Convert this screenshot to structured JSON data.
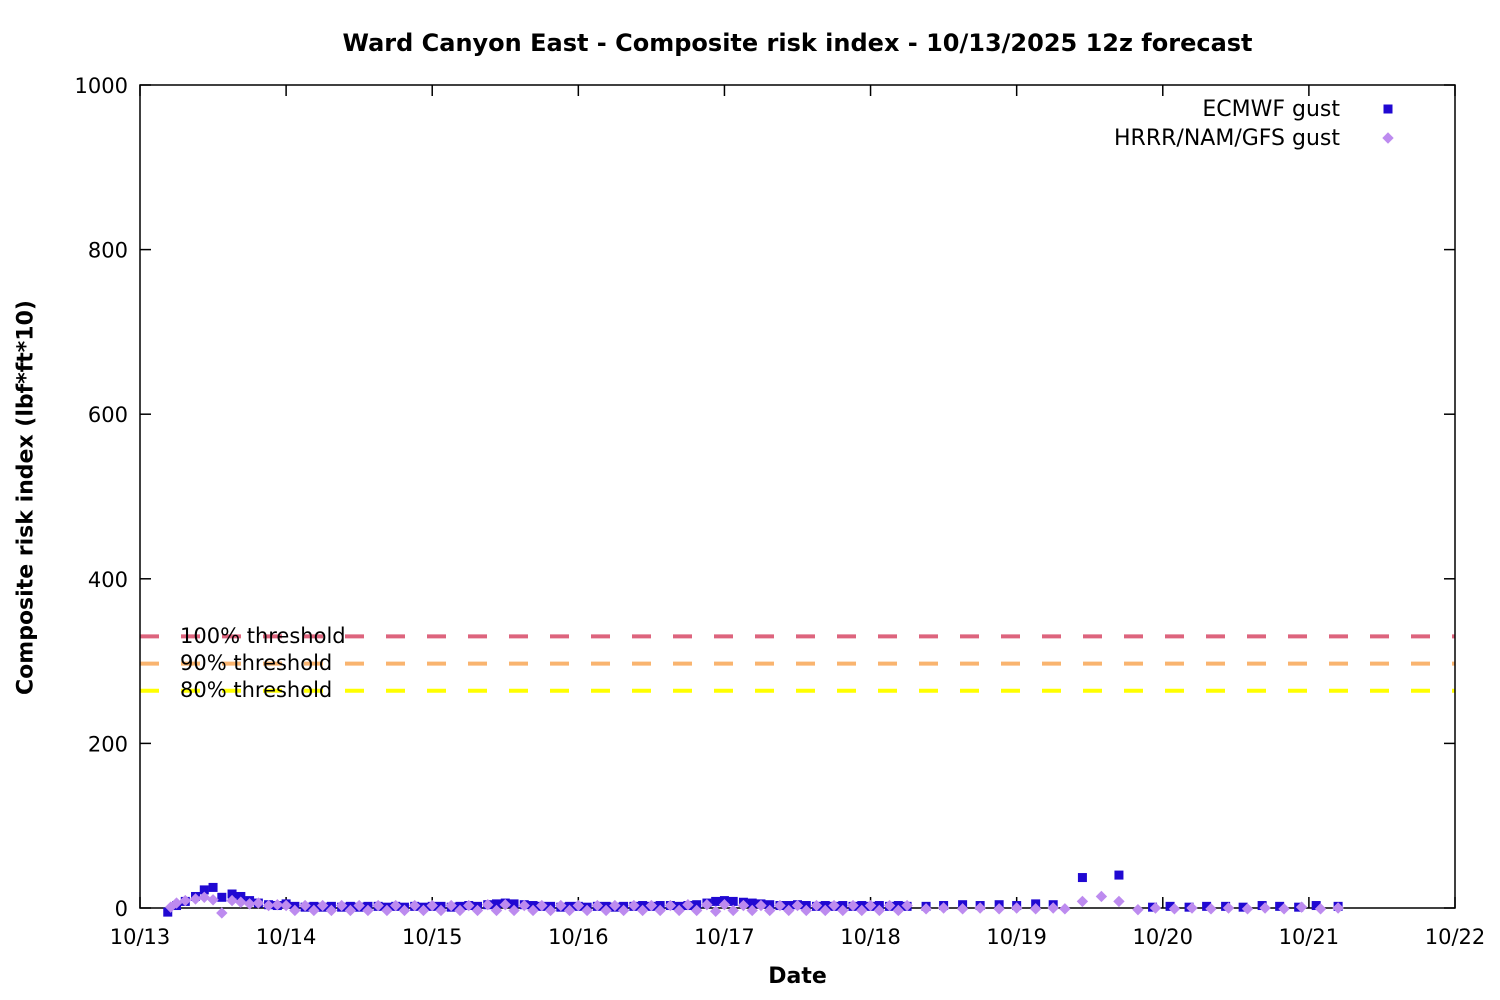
{
  "chart_data": {
    "type": "scatter",
    "title": "Ward Canyon East - Composite risk index - 10/13/2025 12z forecast",
    "xlabel": "Date",
    "ylabel": "Composite risk index (lbf*ft*10)",
    "x_unit": "days since 10/13 00:00 UTC",
    "x_tick_labels": [
      "10/13",
      "10/14",
      "10/15",
      "10/16",
      "10/17",
      "10/18",
      "10/19",
      "10/20",
      "10/21",
      "10/22"
    ],
    "x_range_days": [
      0,
      9
    ],
    "ylim": [
      0,
      1000
    ],
    "yticks": [
      0,
      200,
      400,
      600,
      800,
      1000
    ],
    "grid": false,
    "legend_position": "top-right-inside",
    "thresholds": [
      {
        "label": "100% threshold",
        "value": 330,
        "color": "#dd647d",
        "style": "dashed"
      },
      {
        "label": "90% threshold",
        "value": 297,
        "color": "#f9b46f",
        "style": "dashed"
      },
      {
        "label": "80% threshold",
        "value": 264,
        "color": "#ffff00",
        "style": "dashed"
      }
    ],
    "series": [
      {
        "name": "ECMWF gust",
        "marker": "square",
        "color": "#2008d2",
        "points": [
          [
            0.19,
            -5
          ],
          [
            0.25,
            3
          ],
          [
            0.31,
            8
          ],
          [
            0.38,
            14
          ],
          [
            0.44,
            22
          ],
          [
            0.5,
            25
          ],
          [
            0.56,
            13
          ],
          [
            0.63,
            17
          ],
          [
            0.69,
            14
          ],
          [
            0.75,
            9
          ],
          [
            0.81,
            6
          ],
          [
            0.88,
            4
          ],
          [
            0.94,
            3
          ],
          [
            1.0,
            5
          ],
          [
            1.06,
            2
          ],
          [
            1.13,
            1
          ],
          [
            1.19,
            2
          ],
          [
            1.25,
            1
          ],
          [
            1.31,
            2
          ],
          [
            1.38,
            1
          ],
          [
            1.44,
            2
          ],
          [
            1.5,
            1
          ],
          [
            1.56,
            2
          ],
          [
            1.63,
            2
          ],
          [
            1.69,
            1
          ],
          [
            1.75,
            2
          ],
          [
            1.81,
            1
          ],
          [
            1.88,
            2
          ],
          [
            1.94,
            1
          ],
          [
            2.0,
            2
          ],
          [
            2.06,
            2
          ],
          [
            2.13,
            1
          ],
          [
            2.19,
            2
          ],
          [
            2.25,
            3
          ],
          [
            2.31,
            2
          ],
          [
            2.38,
            4
          ],
          [
            2.44,
            5
          ],
          [
            2.5,
            6
          ],
          [
            2.56,
            5
          ],
          [
            2.63,
            4
          ],
          [
            2.69,
            3
          ],
          [
            2.75,
            2
          ],
          [
            2.81,
            2
          ],
          [
            2.88,
            1
          ],
          [
            2.94,
            2
          ],
          [
            3.0,
            2
          ],
          [
            3.06,
            1
          ],
          [
            3.13,
            2
          ],
          [
            3.19,
            2
          ],
          [
            3.25,
            1
          ],
          [
            3.31,
            2
          ],
          [
            3.38,
            2
          ],
          [
            3.44,
            3
          ],
          [
            3.5,
            2
          ],
          [
            3.56,
            3
          ],
          [
            3.63,
            3
          ],
          [
            3.69,
            2
          ],
          [
            3.75,
            3
          ],
          [
            3.81,
            4
          ],
          [
            3.88,
            6
          ],
          [
            3.94,
            8
          ],
          [
            4.0,
            9
          ],
          [
            4.06,
            8
          ],
          [
            4.13,
            7
          ],
          [
            4.19,
            6
          ],
          [
            4.25,
            5
          ],
          [
            4.31,
            4
          ],
          [
            4.38,
            3
          ],
          [
            4.44,
            3
          ],
          [
            4.5,
            4
          ],
          [
            4.56,
            3
          ],
          [
            4.63,
            2
          ],
          [
            4.69,
            3
          ],
          [
            4.75,
            2
          ],
          [
            4.81,
            3
          ],
          [
            4.88,
            2
          ],
          [
            4.94,
            3
          ],
          [
            5.0,
            2
          ],
          [
            5.06,
            3
          ],
          [
            5.13,
            2
          ],
          [
            5.19,
            3
          ],
          [
            5.25,
            2
          ],
          [
            5.38,
            2
          ],
          [
            5.5,
            3
          ],
          [
            5.63,
            4
          ],
          [
            5.75,
            3
          ],
          [
            5.88,
            4
          ],
          [
            6.0,
            3
          ],
          [
            6.13,
            5
          ],
          [
            6.25,
            4
          ],
          [
            6.45,
            37
          ],
          [
            6.7,
            40
          ],
          [
            6.93,
            1
          ],
          [
            7.05,
            2
          ],
          [
            7.18,
            1
          ],
          [
            7.3,
            2
          ],
          [
            7.43,
            2
          ],
          [
            7.55,
            1
          ],
          [
            7.68,
            3
          ],
          [
            7.8,
            2
          ],
          [
            7.93,
            1
          ],
          [
            8.05,
            3
          ],
          [
            8.2,
            2
          ]
        ]
      },
      {
        "name": "HRRR/NAM/GFS gust",
        "marker": "diamond",
        "color": "#bd8bef",
        "points": [
          [
            0.21,
            1
          ],
          [
            0.25,
            6
          ],
          [
            0.31,
            9
          ],
          [
            0.38,
            11
          ],
          [
            0.44,
            13
          ],
          [
            0.5,
            10
          ],
          [
            0.56,
            -6
          ],
          [
            0.63,
            9
          ],
          [
            0.69,
            7
          ],
          [
            0.75,
            5
          ],
          [
            0.81,
            6
          ],
          [
            0.88,
            3
          ],
          [
            0.94,
            4
          ],
          [
            1.0,
            3
          ],
          [
            1.06,
            -3
          ],
          [
            1.13,
            3
          ],
          [
            1.19,
            -3
          ],
          [
            1.25,
            3
          ],
          [
            1.31,
            -3
          ],
          [
            1.38,
            3
          ],
          [
            1.44,
            -3
          ],
          [
            1.5,
            3
          ],
          [
            1.56,
            -3
          ],
          [
            1.63,
            3
          ],
          [
            1.69,
            -3
          ],
          [
            1.75,
            3
          ],
          [
            1.81,
            -3
          ],
          [
            1.88,
            3
          ],
          [
            1.94,
            -3
          ],
          [
            2.0,
            3
          ],
          [
            2.06,
            -3
          ],
          [
            2.13,
            3
          ],
          [
            2.19,
            -3
          ],
          [
            2.25,
            3
          ],
          [
            2.31,
            -3
          ],
          [
            2.38,
            4
          ],
          [
            2.44,
            -3
          ],
          [
            2.5,
            4
          ],
          [
            2.56,
            -3
          ],
          [
            2.63,
            3
          ],
          [
            2.69,
            -3
          ],
          [
            2.75,
            3
          ],
          [
            2.81,
            -3
          ],
          [
            2.88,
            3
          ],
          [
            2.94,
            -3
          ],
          [
            3.0,
            3
          ],
          [
            3.06,
            -3
          ],
          [
            3.13,
            3
          ],
          [
            3.19,
            -3
          ],
          [
            3.25,
            3
          ],
          [
            3.31,
            -3
          ],
          [
            3.38,
            3
          ],
          [
            3.44,
            -3
          ],
          [
            3.5,
            3
          ],
          [
            3.56,
            -3
          ],
          [
            3.63,
            3
          ],
          [
            3.69,
            -3
          ],
          [
            3.75,
            4
          ],
          [
            3.81,
            -3
          ],
          [
            3.88,
            4
          ],
          [
            3.94,
            -4
          ],
          [
            4.0,
            4
          ],
          [
            4.06,
            -3
          ],
          [
            4.13,
            3
          ],
          [
            4.19,
            -3
          ],
          [
            4.25,
            3
          ],
          [
            4.31,
            -3
          ],
          [
            4.38,
            3
          ],
          [
            4.44,
            -3
          ],
          [
            4.5,
            3
          ],
          [
            4.56,
            -3
          ],
          [
            4.63,
            3
          ],
          [
            4.69,
            -3
          ],
          [
            4.75,
            3
          ],
          [
            4.81,
            -3
          ],
          [
            4.88,
            3
          ],
          [
            4.94,
            -3
          ],
          [
            5.0,
            3
          ],
          [
            5.06,
            -3
          ],
          [
            5.13,
            3
          ],
          [
            5.19,
            -3
          ],
          [
            5.25,
            3
          ],
          [
            5.38,
            -1
          ],
          [
            5.5,
            0
          ],
          [
            5.63,
            -1
          ],
          [
            5.75,
            0
          ],
          [
            5.88,
            -1
          ],
          [
            6.0,
            0
          ],
          [
            6.13,
            -1
          ],
          [
            6.25,
            0
          ],
          [
            6.33,
            -1
          ],
          [
            6.45,
            8
          ],
          [
            6.58,
            14
          ],
          [
            6.7,
            8
          ],
          [
            6.83,
            -2
          ],
          [
            6.95,
            0
          ],
          [
            7.08,
            -1
          ],
          [
            7.2,
            0
          ],
          [
            7.33,
            -1
          ],
          [
            7.45,
            0
          ],
          [
            7.58,
            -1
          ],
          [
            7.7,
            0
          ],
          [
            7.83,
            -1
          ],
          [
            7.95,
            1
          ],
          [
            8.08,
            -1
          ],
          [
            8.2,
            0
          ]
        ]
      }
    ]
  }
}
